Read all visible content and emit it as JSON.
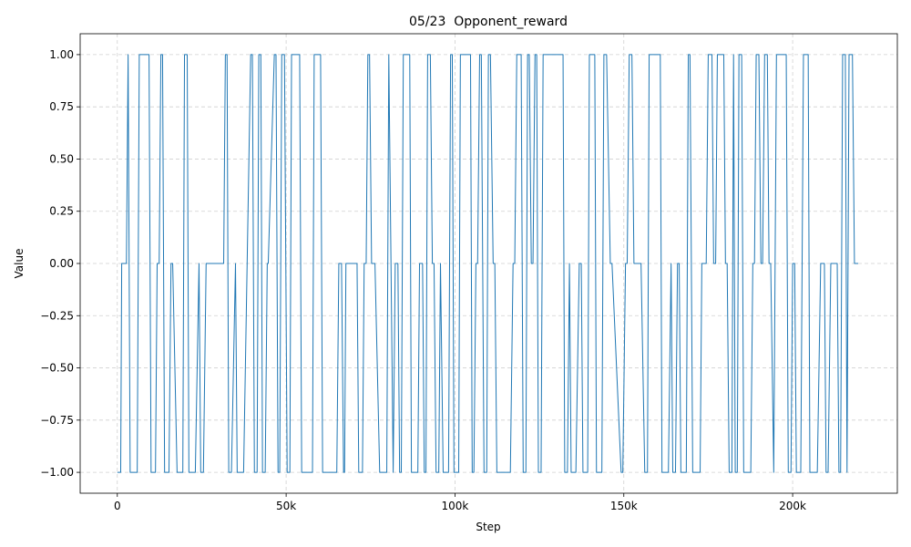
{
  "chart_data": {
    "type": "line",
    "title": "05/23  Opponent_reward",
    "x_label": "Step",
    "y_label": "Value",
    "color": "#1f77b4",
    "grid": true,
    "x": [
      0,
      1000,
      1300,
      2700,
      3200,
      3800,
      5900,
      6500,
      9400,
      10000,
      11300,
      11800,
      12400,
      12900,
      13400,
      14000,
      15300,
      15900,
      16400,
      17700,
      19400,
      19900,
      20700,
      21200,
      23100,
      24200,
      24700,
      25500,
      26300,
      31500,
      32000,
      32500,
      33000,
      33800,
      35000,
      35500,
      37400,
      39500,
      40000,
      40600,
      41400,
      41900,
      42500,
      43000,
      43800,
      44400,
      44700,
      46500,
      47000,
      47600,
      48100,
      48700,
      49500,
      50300,
      51100,
      51600,
      54000,
      54600,
      57800,
      58300,
      60200,
      60800,
      65000,
      65600,
      66400,
      67000,
      67300,
      67700,
      71000,
      71500,
      72600,
      73100,
      73700,
      74200,
      74700,
      75300,
      76300,
      77700,
      79800,
      80400,
      81700,
      82300,
      83100,
      83600,
      84100,
      84700,
      86600,
      87100,
      89000,
      89500,
      90400,
      90900,
      91400,
      91900,
      92700,
      93300,
      93800,
      94400,
      95200,
      95700,
      96500,
      98100,
      98700,
      99200,
      99700,
      101100,
      101600,
      104600,
      105100,
      105600,
      106200,
      106700,
      107300,
      107800,
      108600,
      109400,
      109900,
      110500,
      111300,
      111800,
      112400,
      116400,
      117200,
      117700,
      118300,
      119600,
      120200,
      121000,
      121500,
      122000,
      122600,
      123100,
      123700,
      124200,
      124700,
      125500,
      126100,
      132000,
      132500,
      133300,
      133900,
      134400,
      135800,
      136800,
      137400,
      137900,
      139300,
      139800,
      141400,
      141900,
      143500,
      144100,
      144900,
      146000,
      146500,
      149200,
      149700,
      150500,
      151000,
      151600,
      152400,
      153000,
      155100,
      156200,
      157000,
      157500,
      160800,
      161300,
      163200,
      164000,
      164500,
      165300,
      165900,
      166400,
      166900,
      168500,
      169100,
      169600,
      170400,
      172600,
      173100,
      174400,
      175000,
      176100,
      176600,
      177200,
      177700,
      179600,
      180100,
      180600,
      181200,
      182000,
      182500,
      183000,
      183600,
      184100,
      184900,
      185500,
      187600,
      188200,
      188700,
      189200,
      190000,
      190600,
      191100,
      191700,
      192500,
      193000,
      193500,
      194400,
      195200,
      198100,
      198700,
      199500,
      200000,
      200600,
      201100,
      202400,
      203200,
      204600,
      205100,
      207300,
      208300,
      209400,
      209900,
      210500,
      211300,
      213200,
      213700,
      214200,
      214800,
      215600,
      216100,
      216700,
      217700,
      218300,
      219400
    ],
    "values": [
      -1,
      -1,
      0,
      0,
      1,
      -1,
      -1,
      1,
      1,
      -1,
      -1,
      0,
      0,
      1,
      1,
      -1,
      -1,
      0,
      0,
      -1,
      -1,
      1,
      1,
      -1,
      -1,
      0,
      -1,
      -1,
      0,
      0,
      1,
      1,
      -1,
      -1,
      0,
      -1,
      -1,
      1,
      1,
      -1,
      -1,
      1,
      1,
      -1,
      -1,
      0,
      0,
      1,
      1,
      -1,
      -1,
      1,
      1,
      -1,
      -1,
      1,
      1,
      -1,
      -1,
      1,
      1,
      -1,
      -1,
      0,
      0,
      -1,
      -1,
      0,
      0,
      -1,
      -1,
      0,
      0,
      1,
      1,
      0,
      0,
      -1,
      -1,
      1,
      -1,
      0,
      0,
      -1,
      -1,
      1,
      1,
      -1,
      -1,
      0,
      0,
      -1,
      -1,
      1,
      1,
      0,
      0,
      -1,
      -1,
      0,
      -1,
      -1,
      1,
      1,
      -1,
      -1,
      1,
      1,
      -1,
      -1,
      0,
      0,
      1,
      1,
      -1,
      -1,
      1,
      1,
      0,
      0,
      -1,
      -1,
      0,
      0,
      1,
      1,
      -1,
      -1,
      1,
      1,
      0,
      0,
      1,
      1,
      -1,
      -1,
      1,
      1,
      -1,
      -1,
      0,
      -1,
      -1,
      0,
      0,
      -1,
      -1,
      1,
      1,
      -1,
      -1,
      1,
      1,
      0,
      0,
      -1,
      -1,
      0,
      0,
      1,
      1,
      0,
      0,
      -1,
      -1,
      1,
      1,
      -1,
      -1,
      0,
      -1,
      -1,
      0,
      0,
      -1,
      -1,
      1,
      1,
      -1,
      -1,
      0,
      0,
      1,
      1,
      0,
      0,
      1,
      1,
      0,
      0,
      -1,
      -1,
      1,
      -1,
      -1,
      1,
      1,
      -1,
      -1,
      0,
      0,
      1,
      1,
      0,
      0,
      1,
      1,
      0,
      0,
      -1,
      1,
      1,
      -1,
      -1,
      0,
      0,
      -1,
      -1,
      1,
      1,
      -1,
      -1,
      0,
      0,
      -1,
      -1,
      0,
      0,
      -1,
      -1,
      1,
      1,
      -1,
      1,
      1,
      0,
      0
    ],
    "xlim": [
      -11000,
      231000
    ],
    "ylim": [
      -1.1,
      1.1
    ],
    "xticks": [
      0,
      {
        "value": 50000,
        "label": "50k"
      },
      {
        "value": 100000,
        "label": "100k"
      },
      {
        "value": 150000,
        "label": "150k"
      },
      {
        "value": 200000,
        "label": "200k"
      }
    ],
    "yticks": [
      {
        "value": -1,
        "label": "−1.00"
      },
      {
        "value": -0.75,
        "label": "−0.75"
      },
      {
        "value": -0.5,
        "label": "−0.50"
      },
      {
        "value": -0.25,
        "label": "−0.25"
      },
      {
        "value": 0,
        "label": "0.00"
      },
      {
        "value": 0.25,
        "label": "0.25"
      },
      {
        "value": 0.5,
        "label": "0.50"
      },
      {
        "value": 0.75,
        "label": "0.75"
      },
      {
        "value": 1,
        "label": "1.00"
      }
    ]
  }
}
